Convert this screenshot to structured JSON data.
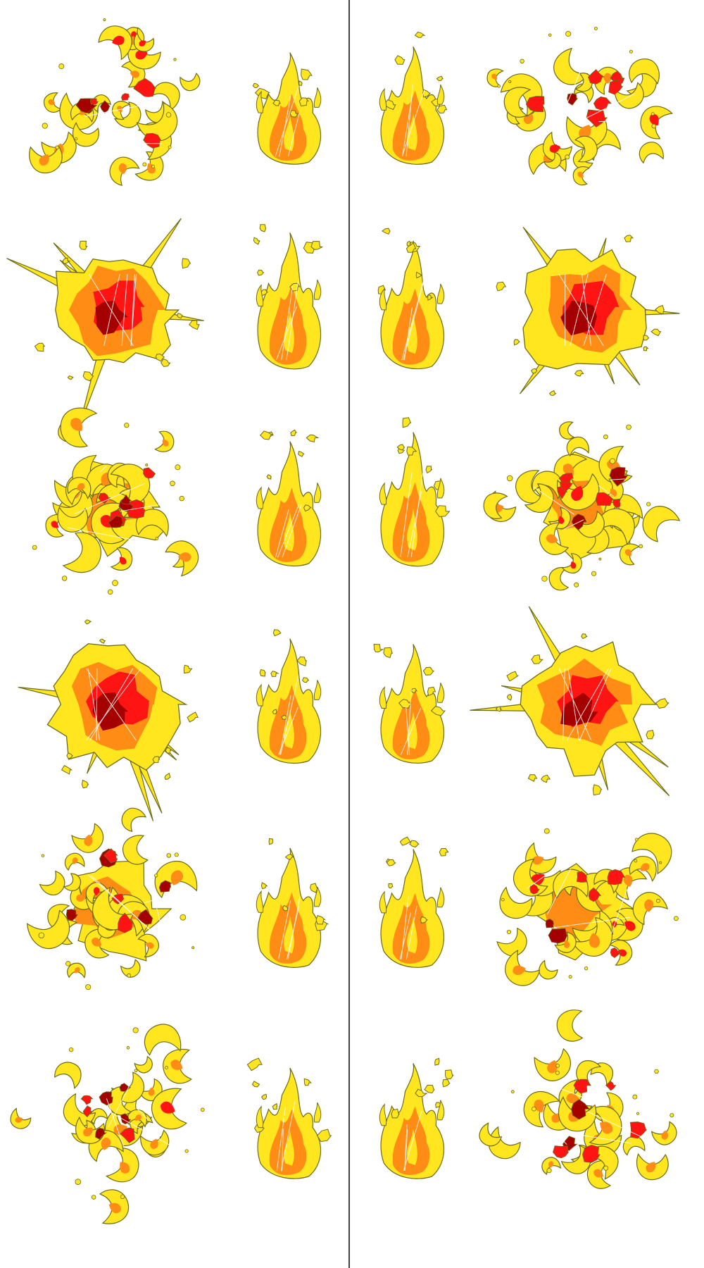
{
  "sprite_sheet": {
    "background": "#ffffff",
    "divider_color": "#000000",
    "palette": {
      "outline": "#6b6b1a",
      "yellow": "#ffe61e",
      "orange": "#ff8c14",
      "red": "#ff1414",
      "dark_red": "#a50000",
      "highlight": "#ffffff"
    },
    "panels": [
      {
        "name": "left-panel",
        "rows": [
          {
            "effects": [
              "scattered-burst-icon",
              "flame-icon"
            ]
          },
          {
            "effects": [
              "explosion-icon",
              "flame-icon"
            ]
          },
          {
            "effects": [
              "scattered-burst-icon",
              "flame-icon"
            ]
          },
          {
            "effects": [
              "explosion-icon",
              "flame-icon"
            ]
          },
          {
            "effects": [
              "scattered-burst-icon",
              "flame-icon"
            ]
          },
          {
            "effects": [
              "scattered-burst-icon",
              "flame-icon"
            ]
          }
        ]
      },
      {
        "name": "right-panel",
        "rows": [
          {
            "effects": [
              "flame-icon",
              "scattered-burst-icon"
            ]
          },
          {
            "effects": [
              "flame-icon",
              "explosion-icon"
            ]
          },
          {
            "effects": [
              "flame-icon",
              "scattered-burst-icon"
            ]
          },
          {
            "effects": [
              "flame-icon",
              "explosion-icon"
            ]
          },
          {
            "effects": [
              "flame-icon",
              "scattered-burst-icon"
            ]
          },
          {
            "effects": [
              "flame-icon",
              "scattered-burst-icon"
            ]
          }
        ]
      }
    ]
  }
}
